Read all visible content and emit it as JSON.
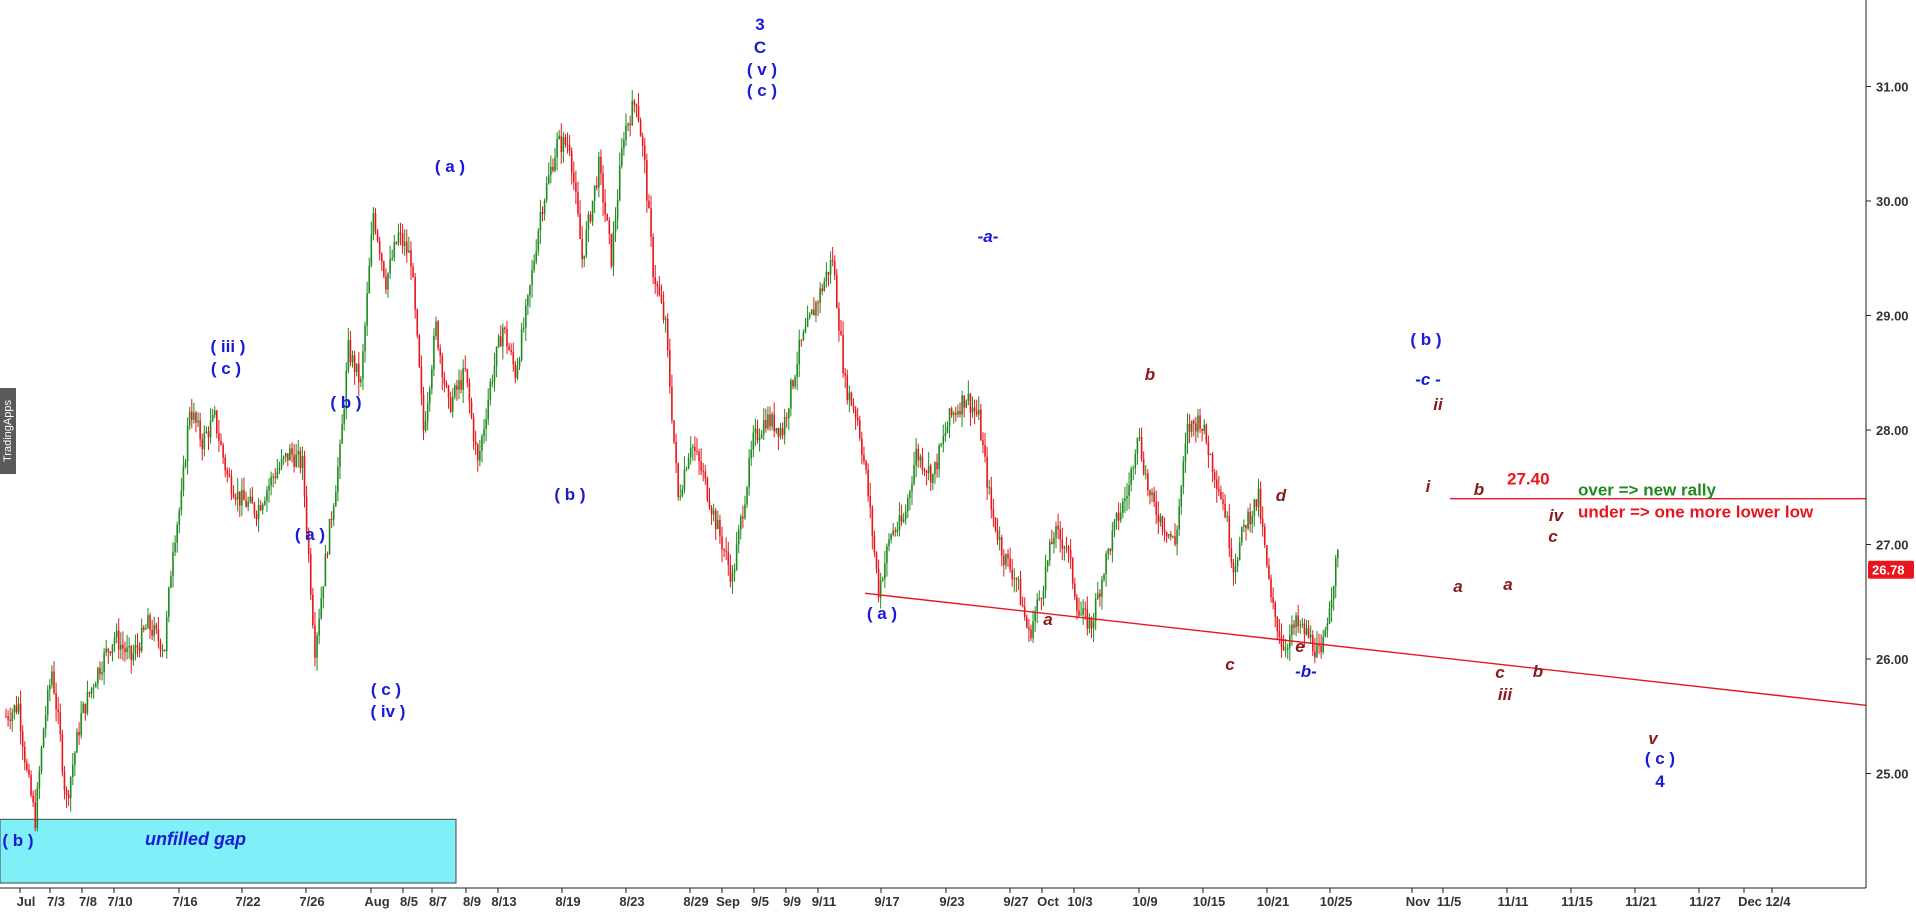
{
  "chart_data": {
    "type": "candlestick",
    "y_axis": {
      "ticks": [
        "31.00",
        "30.00",
        "29.00",
        "28.00",
        "27.00",
        "26.00",
        "25.00"
      ],
      "range": [
        24.0,
        31.8
      ],
      "side": "right"
    },
    "x_axis": {
      "labels": [
        "Jul",
        "7/3",
        "7/8",
        "7/10",
        "7/16",
        "7/22",
        "7/26",
        "Aug",
        "8/5",
        "8/7",
        "8/9",
        "8/13",
        "8/19",
        "8/23",
        "8/29",
        "Sep",
        "9/5",
        "9/9",
        "9/11",
        "9/17",
        "9/23",
        "9/27",
        "Oct",
        "10/3",
        "10/9",
        "10/15",
        "10/21",
        "10/25",
        "Nov",
        "11/5",
        "11/11",
        "11/15",
        "11/21",
        "11/27",
        "Dec",
        "12/4"
      ]
    },
    "last_price": "26.78",
    "colors": {
      "up": "#1f8a1f",
      "down": "#e8161c",
      "wave_blue": "#1a1ad6",
      "wave_maroon": "#8b1a1a",
      "gap_fill": "#80f0f8",
      "price_badge": "#e8161c"
    },
    "price_path": [
      [
        0,
        25.5
      ],
      [
        1.5,
        25.6
      ],
      [
        2.5,
        25.0
      ],
      [
        3.5,
        24.6
      ],
      [
        4.5,
        25.4
      ],
      [
        5.5,
        25.9
      ],
      [
        6.5,
        25.3
      ],
      [
        7.2,
        24.75
      ],
      [
        9,
        25.5
      ],
      [
        11,
        25.9
      ],
      [
        13,
        26.2
      ],
      [
        15,
        26.0
      ],
      [
        17,
        26.3
      ],
      [
        19,
        26.1
      ],
      [
        20,
        27.0
      ],
      [
        21,
        27.4
      ],
      [
        22,
        28.2
      ],
      [
        23.5,
        27.9
      ],
      [
        25,
        28.1
      ],
      [
        26.5,
        27.6
      ],
      [
        28,
        27.4
      ],
      [
        30,
        27.3
      ],
      [
        32,
        27.6
      ],
      [
        34,
        27.8
      ],
      [
        35.5,
        27.7
      ],
      [
        37,
        26.1
      ],
      [
        38.5,
        27.0
      ],
      [
        40,
        27.8
      ],
      [
        41,
        28.7
      ],
      [
        42.5,
        28.4
      ],
      [
        44,
        29.9
      ],
      [
        45.5,
        29.3
      ],
      [
        47,
        29.7
      ],
      [
        48.5,
        29.5
      ],
      [
        50,
        28.0
      ],
      [
        51.5,
        28.9
      ],
      [
        53,
        28.2
      ],
      [
        55,
        28.5
      ],
      [
        56.5,
        27.7
      ],
      [
        58,
        28.4
      ],
      [
        59.5,
        28.9
      ],
      [
        61,
        28.5
      ],
      [
        62.5,
        29.1
      ],
      [
        64,
        29.9
      ],
      [
        66,
        30.5
      ],
      [
        67.5,
        30.5
      ],
      [
        69,
        29.5
      ],
      [
        71,
        30.3
      ],
      [
        72.5,
        29.5
      ],
      [
        74,
        30.6
      ],
      [
        75.5,
        30.9
      ],
      [
        76.5,
        30.3
      ],
      [
        77.5,
        29.4
      ],
      [
        79,
        28.9
      ],
      [
        80.5,
        27.4
      ],
      [
        82,
        27.9
      ],
      [
        83.5,
        27.6
      ],
      [
        85,
        27.2
      ],
      [
        87,
        26.7
      ],
      [
        88,
        27.2
      ],
      [
        89.5,
        27.9
      ],
      [
        91,
        28.1
      ],
      [
        93,
        28.0
      ],
      [
        95,
        28.7
      ],
      [
        97,
        29.1
      ],
      [
        99,
        29.5
      ],
      [
        100.5,
        28.4
      ],
      [
        102,
        28.1
      ],
      [
        103,
        27.6
      ],
      [
        104.5,
        26.6
      ],
      [
        106,
        27.1
      ],
      [
        107.5,
        27.2
      ],
      [
        109,
        27.8
      ],
      [
        111,
        27.6
      ],
      [
        113,
        28.1
      ],
      [
        115,
        28.3
      ],
      [
        116.5,
        28.1
      ],
      [
        118,
        27.3
      ],
      [
        119.5,
        26.9
      ],
      [
        121,
        26.7
      ],
      [
        122.5,
        26.2
      ],
      [
        124,
        26.6
      ],
      [
        125.5,
        27.1
      ],
      [
        127,
        27.0
      ],
      [
        128.5,
        26.4
      ],
      [
        130,
        26.3
      ],
      [
        131.5,
        26.8
      ],
      [
        133,
        27.2
      ],
      [
        134.5,
        27.5
      ],
      [
        135.5,
        28.0
      ],
      [
        137,
        27.4
      ],
      [
        138.5,
        27.2
      ],
      [
        140,
        27.0
      ],
      [
        141.5,
        28.0
      ],
      [
        143,
        28.1
      ],
      [
        144.5,
        27.7
      ],
      [
        146,
        27.3
      ],
      [
        147,
        26.8
      ],
      [
        148.5,
        27.2
      ],
      [
        150,
        27.4
      ],
      [
        151.5,
        26.5
      ],
      [
        153,
        26.1
      ],
      [
        154.5,
        26.3
      ],
      [
        156,
        26.2
      ],
      [
        157.5,
        26.0
      ],
      [
        158.5,
        26.5
      ],
      [
        159.5,
        26.9
      ]
    ],
    "gap": {
      "label": "unfilled gap",
      "price_top": 24.6,
      "price_bottom": 24.0
    },
    "support_line": {
      "from": [
        "9/17",
        26.6
      ],
      "to": [
        "Dec 12/4+",
        25.7
      ]
    },
    "resistance_level": {
      "value": "27.40",
      "label_over": "over => new rally",
      "label_under": "under => one more lower low"
    },
    "wave_labels": [
      {
        "text": "( b )",
        "color": "blue"
      },
      {
        "text": "( iii )",
        "color": "blue"
      },
      {
        "text": "( c )",
        "color": "blue"
      },
      {
        "text": "( a )",
        "color": "blue"
      },
      {
        "text": "( b )",
        "color": "blue"
      },
      {
        "text": "( c )",
        "color": "blue"
      },
      {
        "text": "( iv )",
        "color": "blue"
      },
      {
        "text": "( a )",
        "color": "blue"
      },
      {
        "text": "( b )",
        "color": "blue"
      },
      {
        "text": "3",
        "color": "blue"
      },
      {
        "text": "C",
        "color": "blue"
      },
      {
        "text": "( v )",
        "color": "blue"
      },
      {
        "text": "( c )",
        "color": "blue"
      },
      {
        "text": "( a )",
        "color": "blue"
      },
      {
        "text": "-a-",
        "color": "blue",
        "italic": true
      },
      {
        "text": "a",
        "color": "maroon",
        "italic": true
      },
      {
        "text": "b",
        "color": "maroon",
        "italic": true
      },
      {
        "text": "c",
        "color": "maroon",
        "italic": true
      },
      {
        "text": "d",
        "color": "maroon",
        "italic": true
      },
      {
        "text": "e",
        "color": "maroon",
        "italic": true
      },
      {
        "text": "-b-",
        "color": "blue",
        "italic": true
      },
      {
        "text": "( b )",
        "color": "blue"
      },
      {
        "text": "-c -",
        "color": "blue",
        "italic": true
      },
      {
        "text": "ii",
        "color": "maroon",
        "italic": true
      },
      {
        "text": "i",
        "color": "maroon",
        "italic": true
      },
      {
        "text": "b",
        "color": "maroon",
        "italic": true
      },
      {
        "text": "a",
        "color": "maroon",
        "italic": true
      },
      {
        "text": "a",
        "color": "maroon",
        "italic": true
      },
      {
        "text": "c",
        "color": "maroon",
        "italic": true
      },
      {
        "text": "iii",
        "color": "maroon",
        "italic": true
      },
      {
        "text": "b",
        "color": "maroon",
        "italic": true
      },
      {
        "text": "iv",
        "color": "maroon",
        "italic": true
      },
      {
        "text": "c",
        "color": "maroon",
        "italic": true
      },
      {
        "text": "v",
        "color": "maroon",
        "italic": true
      },
      {
        "text": "( c )",
        "color": "blue"
      },
      {
        "text": "4",
        "color": "blue"
      }
    ],
    "watermark": "TradingApps"
  }
}
